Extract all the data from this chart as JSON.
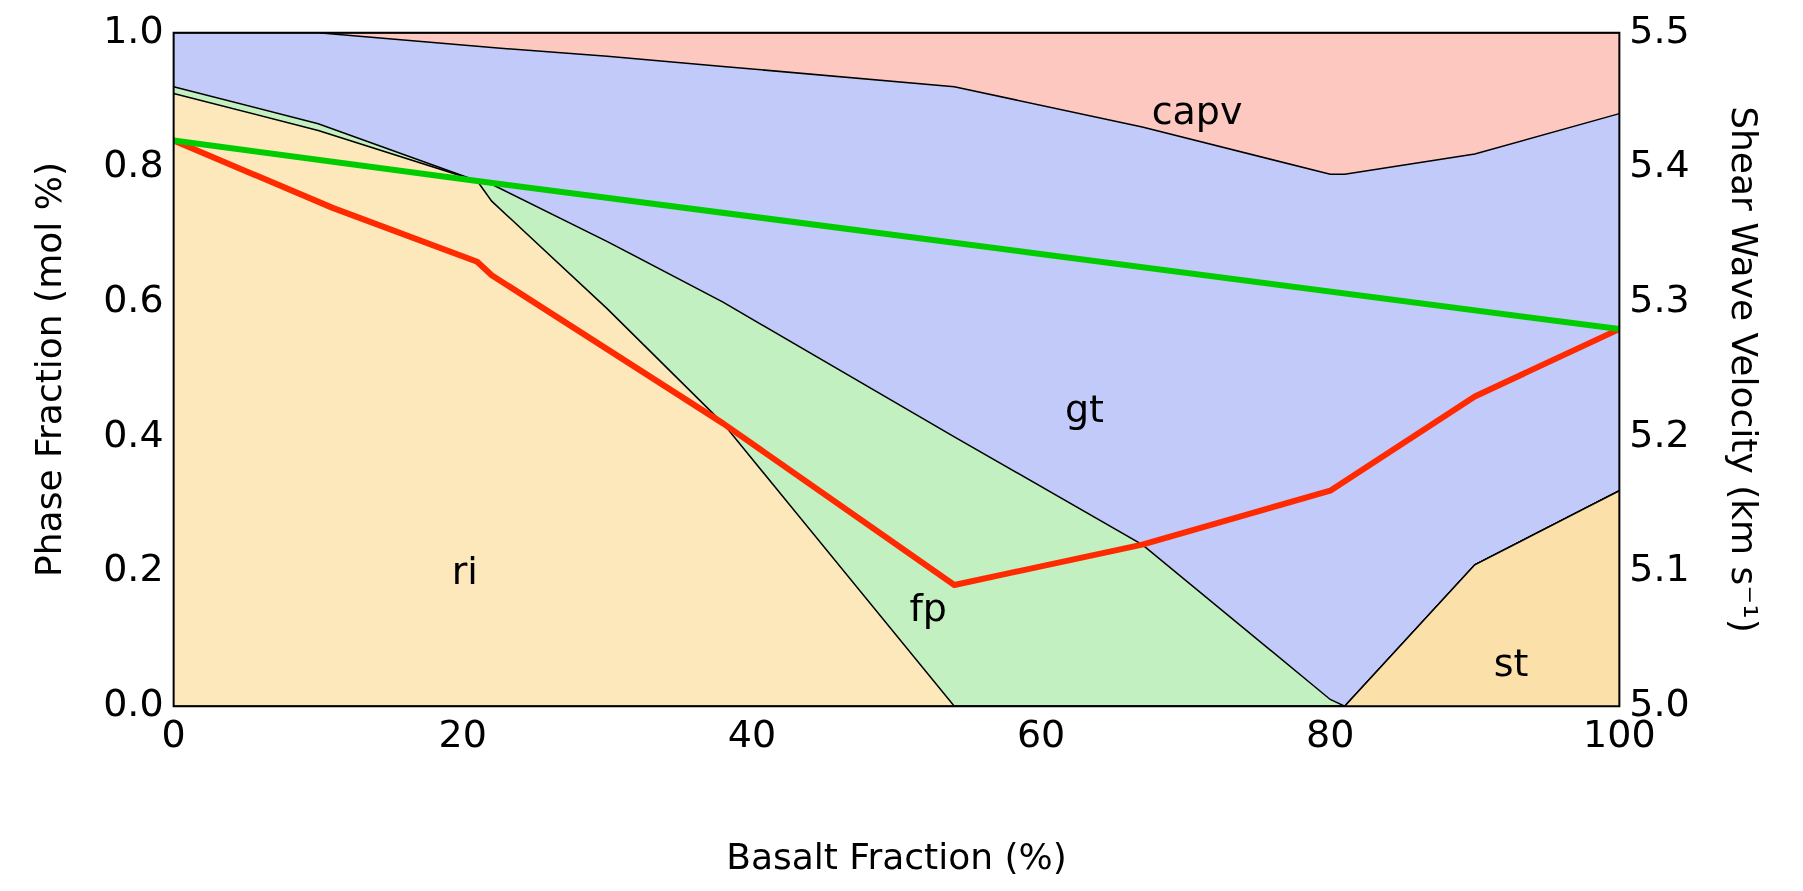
{
  "chart_data": {
    "type": "area",
    "stacked": true,
    "xlabel": "Basalt Fraction (%)",
    "ylabel": "Phase Fraction (mol %)",
    "y2label": "Shear Wave Velocity (km s⁻¹)",
    "x": [
      0,
      10,
      21,
      22,
      30,
      38,
      54,
      67,
      80,
      81,
      90,
      100
    ],
    "series": [
      {
        "name": "st",
        "color": "#fbe0aa",
        "values": [
          0,
          0,
          0,
          0,
          0,
          0,
          0,
          0,
          0,
          0,
          0.21,
          0.32
        ]
      },
      {
        "name": "ri",
        "color": "#fde8bb",
        "values": [
          0.91,
          0.855,
          0.78,
          0.75,
          0.59,
          0.42,
          0,
          0,
          0,
          0,
          0,
          0
        ]
      },
      {
        "name": "fp",
        "color": "#c2f0c0",
        "values": [
          0.01,
          0.01,
          0,
          0.025,
          0.1,
          0.18,
          0.4,
          0.24,
          0.01,
          0,
          0,
          0
        ]
      },
      {
        "name": "gt",
        "color": "#c2caf9",
        "values": [
          0.08,
          0.135,
          0.2,
          0.203,
          0.275,
          0.35,
          0.52,
          0.62,
          0.78,
          0.79,
          0.61,
          0.56
        ]
      },
      {
        "name": "capv",
        "color": "#fdc8c0",
        "values": [
          0,
          0,
          0.02,
          0.022,
          0.035,
          0.05,
          0.08,
          0.14,
          0.21,
          0.21,
          0.18,
          0.12
        ]
      },
      {
        "type": "line",
        "axis": "y2",
        "color": "#00cc00",
        "x": [
          0,
          21,
          100
        ],
        "values": [
          5.42,
          5.39,
          5.28
        ]
      },
      {
        "type": "line",
        "axis": "y2",
        "color": "#ff2a00",
        "x": [
          0,
          11,
          21,
          22,
          38,
          54,
          67,
          80,
          90,
          100
        ],
        "values": [
          5.42,
          5.37,
          5.33,
          5.32,
          5.21,
          5.09,
          5.12,
          5.16,
          5.23,
          5.28
        ]
      }
    ],
    "xlim": [
      0,
      100
    ],
    "xticks": [
      0,
      20,
      40,
      60,
      80,
      100
    ],
    "ylim": [
      0,
      1
    ],
    "yticks": [
      {
        "value": 0,
        "label": "0.0"
      },
      {
        "value": 0.2,
        "label": "0.2"
      },
      {
        "value": 0.4,
        "label": "0.4"
      },
      {
        "value": 0.6,
        "label": "0.6"
      },
      {
        "value": 0.8,
        "label": "0.8"
      },
      {
        "value": 1,
        "label": "1.0"
      }
    ],
    "y2lim": [
      5,
      5.5
    ],
    "y2ticks": [
      {
        "value": 5,
        "label": "5.0"
      },
      {
        "value": 5.1,
        "label": "5.1"
      },
      {
        "value": 5.2,
        "label": "5.2"
      },
      {
        "value": 5.3,
        "label": "5.3"
      },
      {
        "value": 5.4,
        "label": "5.4"
      },
      {
        "value": 5.5,
        "label": "5.5"
      }
    ],
    "legend": false,
    "marker": "none",
    "line_style": "solid"
  }
}
